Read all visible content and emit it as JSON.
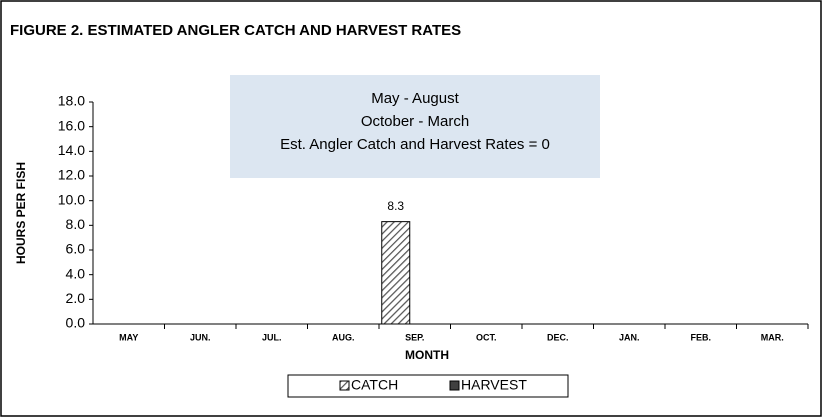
{
  "chart_data": {
    "type": "bar",
    "title": "FIGURE 2.  ESTIMATED ANGLER CATCH AND HARVEST RATES",
    "annotation": [
      "May - August",
      "October - March",
      "Est. Angler Catch and Harvest Rates = 0"
    ],
    "xlabel": "MONTH",
    "ylabel": "HOURS PER FISH",
    "categories": [
      "MAY",
      "JUN.",
      "JUL.",
      "AUG.",
      "SEP.",
      "OCT.",
      "DEC.",
      "JAN.",
      "FEB.",
      "MAR."
    ],
    "series": [
      {
        "name": "CATCH",
        "color": "#7f7f7f",
        "pattern": "hatch",
        "values": [
          0,
          0,
          0,
          0,
          8.3,
          0,
          0,
          0,
          0,
          0
        ],
        "value_labels": [
          null,
          null,
          null,
          null,
          "8.3",
          null,
          null,
          null,
          null,
          null
        ]
      },
      {
        "name": "HARVEST",
        "color": "#404040",
        "values": [
          0,
          0,
          0,
          0,
          0,
          0,
          0,
          0,
          0,
          0
        ]
      }
    ],
    "ylim": [
      0,
      18
    ],
    "yticks": [
      {
        "value": 0,
        "label": "0.0"
      },
      {
        "value": 2,
        "label": "2.0"
      },
      {
        "value": 4,
        "label": "4.0"
      },
      {
        "value": 6,
        "label": "6.0"
      },
      {
        "value": 8,
        "label": "8.0"
      },
      {
        "value": 10,
        "label": "10.0"
      },
      {
        "value": 12,
        "label": "12.0"
      },
      {
        "value": 14,
        "label": "14.0"
      },
      {
        "value": 16,
        "label": "16.0"
      },
      {
        "value": 18,
        "label": "18.0"
      }
    ],
    "grid": false
  }
}
